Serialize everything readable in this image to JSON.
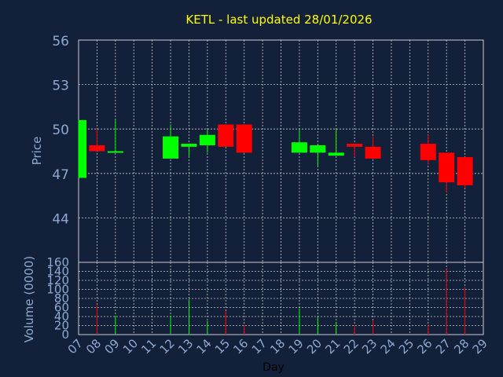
{
  "chart_data": [
    {
      "type": "candlestick",
      "title": "KETL - last updated 28/01/2026",
      "ylabel": "Price",
      "ylim": [
        41,
        56
      ],
      "yticks": [
        44,
        47,
        50,
        53,
        56
      ],
      "grid": true,
      "colors": {
        "up": "#00ff00",
        "down": "#ff0000",
        "background": "#13203a",
        "grid": "#cccccc",
        "text": "#8fa8d0",
        "title": "#ffff00"
      },
      "candles": [
        {
          "day": "07",
          "open": 46.7,
          "close": 50.6,
          "high": 50.6,
          "low": 46.7
        },
        {
          "day": "08",
          "open": 48.9,
          "close": 48.5,
          "high": 50.0,
          "low": 48.5
        },
        {
          "day": "09",
          "open": 48.4,
          "close": 48.5,
          "high": 50.6,
          "low": 48.4
        },
        {
          "day": "12",
          "open": 48.0,
          "close": 49.5,
          "high": 50.3,
          "low": 48.0
        },
        {
          "day": "13",
          "open": 48.8,
          "close": 49.0,
          "high": 49.0,
          "low": 48.1
        },
        {
          "day": "14",
          "open": 48.9,
          "close": 49.6,
          "high": 50.0,
          "low": 48.4
        },
        {
          "day": "15",
          "open": 50.3,
          "close": 48.8,
          "high": 50.3,
          "low": 48.8
        },
        {
          "day": "16",
          "open": 50.3,
          "close": 48.4,
          "high": 50.3,
          "low": 48.4
        },
        {
          "day": "19",
          "open": 48.4,
          "close": 49.1,
          "high": 50.0,
          "low": 48.4
        },
        {
          "day": "20",
          "open": 48.4,
          "close": 48.9,
          "high": 48.9,
          "low": 47.5
        },
        {
          "day": "21",
          "open": 48.2,
          "close": 48.4,
          "high": 50.0,
          "low": 48.2
        },
        {
          "day": "22",
          "open": 49.0,
          "close": 48.8,
          "high": 49.0,
          "low": 48.1
        },
        {
          "day": "23",
          "open": 48.8,
          "close": 48.0,
          "high": 49.5,
          "low": 48.0
        },
        {
          "day": "26",
          "open": 49.0,
          "close": 47.9,
          "high": 49.6,
          "low": 47.6
        },
        {
          "day": "27",
          "open": 48.4,
          "close": 46.4,
          "high": 48.4,
          "low": 45.7
        },
        {
          "day": "28",
          "open": 48.1,
          "close": 46.2,
          "high": 48.1,
          "low": 46.0
        }
      ]
    },
    {
      "type": "bar",
      "ylabel": "Volume (0000)",
      "xlabel": "Day",
      "ylim": [
        0,
        160
      ],
      "yticks": [
        0,
        20,
        40,
        60,
        80,
        100,
        120,
        140,
        160
      ],
      "grid": true,
      "categories": [
        "07",
        "08",
        "09",
        "10",
        "11",
        "12",
        "13",
        "14",
        "15",
        "16",
        "17",
        "18",
        "19",
        "20",
        "21",
        "22",
        "23",
        "24",
        "25",
        "26",
        "27",
        "28",
        "29"
      ],
      "bars": [
        {
          "day": "08",
          "value": 65,
          "color": "#ff0000"
        },
        {
          "day": "09",
          "value": 42,
          "color": "#00ff00"
        },
        {
          "day": "12",
          "value": 42,
          "color": "#00ff00"
        },
        {
          "day": "13",
          "value": 78,
          "color": "#00ff00"
        },
        {
          "day": "14",
          "value": 30,
          "color": "#00ff00"
        },
        {
          "day": "15",
          "value": 52,
          "color": "#ff0000"
        },
        {
          "day": "16",
          "value": 22,
          "color": "#ff0000"
        },
        {
          "day": "19",
          "value": 58,
          "color": "#00ff00"
        },
        {
          "day": "20",
          "value": 38,
          "color": "#00ff00"
        },
        {
          "day": "21",
          "value": 28,
          "color": "#00ff00"
        },
        {
          "day": "22",
          "value": 22,
          "color": "#ff0000"
        },
        {
          "day": "23",
          "value": 32,
          "color": "#ff0000"
        },
        {
          "day": "26",
          "value": 22,
          "color": "#ff0000"
        },
        {
          "day": "27",
          "value": 145,
          "color": "#ff0000"
        },
        {
          "day": "28",
          "value": 105,
          "color": "#ff0000"
        }
      ]
    }
  ]
}
